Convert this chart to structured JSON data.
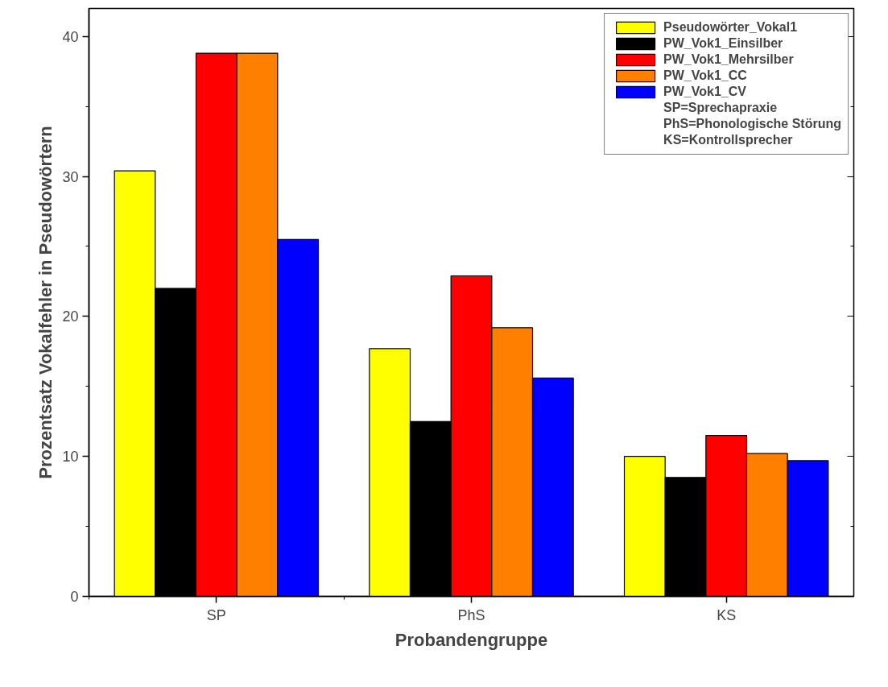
{
  "chart_data": {
    "type": "bar",
    "xlabel": "Probandengruppe",
    "ylabel": "Prozentsatz Vokalfehler in Pseudowörtern",
    "categories": [
      "SP",
      "PhS",
      "KS"
    ],
    "series": [
      {
        "name": "Pseudowörter_Vokal1",
        "color": "#ffff00",
        "values": [
          30.4,
          17.7,
          10.0
        ]
      },
      {
        "name": "PW_Vok1_Einsilber",
        "color": "#000000",
        "values": [
          22.0,
          12.5,
          8.5
        ]
      },
      {
        "name": "PW_Vok1_Mehrsilber",
        "color": "#ff0000",
        "values": [
          38.8,
          22.9,
          11.5
        ]
      },
      {
        "name": "PW_Vok1_CC",
        "color": "#ff8000",
        "values": [
          38.8,
          19.2,
          10.2
        ]
      },
      {
        "name": "PW_Vok1_CV",
        "color": "#0000ff",
        "values": [
          25.5,
          15.6,
          9.7
        ]
      }
    ],
    "ylim": [
      0,
      42
    ],
    "yticks": [
      0,
      10,
      20,
      30,
      40
    ],
    "grid": false,
    "legend": "top right",
    "annotations": [
      "SP=Sprechapraxie",
      "PhS=Phonologische Störung",
      "KS=Kontrollsprecher"
    ]
  }
}
